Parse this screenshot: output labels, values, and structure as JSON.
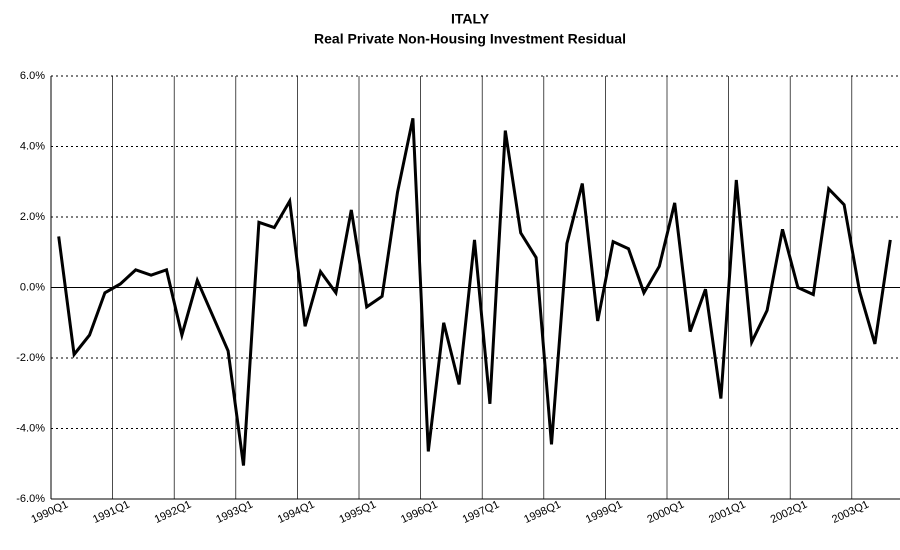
{
  "chart_data": {
    "type": "line",
    "title": "ITALY",
    "subtitle": "Real Private Non-Housing Investment Residual",
    "categories": [
      "1990Q1",
      null,
      null,
      null,
      "1991Q1",
      null,
      null,
      null,
      "1992Q1",
      null,
      null,
      null,
      "1993Q1",
      null,
      null,
      null,
      "1994Q1",
      null,
      null,
      null,
      "1995Q1",
      null,
      null,
      null,
      "1996Q1",
      null,
      null,
      null,
      "1997Q1",
      null,
      null,
      null,
      "1998Q1",
      null,
      null,
      null,
      "1999Q1",
      null,
      null,
      null,
      "2000Q1",
      null,
      null,
      null,
      "2001Q1",
      null,
      null,
      null,
      "2002Q1",
      null,
      null,
      null,
      "2003Q1",
      null,
      null
    ],
    "series": [
      {
        "name": "Residual",
        "color": "#000000",
        "values": [
          1.45,
          -1.9,
          -1.35,
          -0.15,
          0.1,
          0.5,
          0.35,
          0.5,
          -1.35,
          0.2,
          -0.8,
          -1.8,
          -5.05,
          1.85,
          1.7,
          2.45,
          -1.1,
          0.45,
          -0.15,
          2.2,
          -0.55,
          -0.25,
          2.7,
          4.8,
          -4.65,
          -1.0,
          -2.75,
          1.35,
          -3.3,
          4.45,
          1.55,
          0.85,
          -4.45,
          1.25,
          2.95,
          -0.95,
          1.3,
          1.1,
          -0.15,
          0.6,
          2.4,
          -1.25,
          -0.05,
          -3.15,
          3.05,
          -1.55,
          -0.65,
          1.65,
          0.0,
          -0.2,
          2.8,
          2.35,
          -0.1,
          -1.6,
          1.35
        ]
      }
    ],
    "ylim": [
      -6,
      6
    ],
    "yticks": [
      {
        "value": -6,
        "label": "-6.0%"
      },
      {
        "value": -4,
        "label": "-4.0%"
      },
      {
        "value": -2,
        "label": "-2.0%"
      },
      {
        "value": 0,
        "label": "0.0%"
      },
      {
        "value": 2,
        "label": "2.0%"
      },
      {
        "value": 4,
        "label": "4.0%"
      },
      {
        "value": 6,
        "label": "6.0%"
      }
    ],
    "grid": true
  }
}
